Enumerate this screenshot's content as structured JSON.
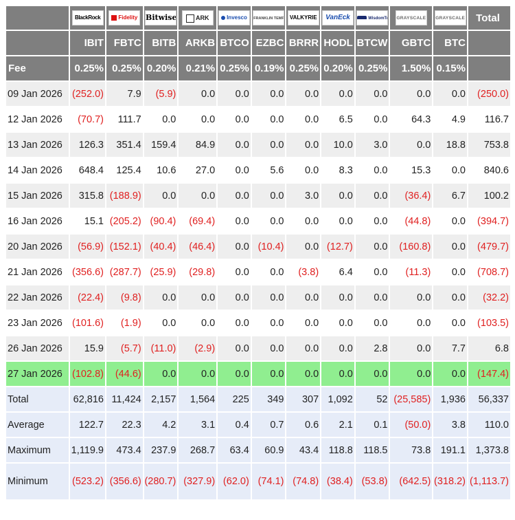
{
  "header": {
    "total_label": "Total",
    "fee_label": "Fee",
    "issuers": [
      {
        "ticker": "IBIT",
        "fee": "0.25%",
        "logo_text": "BlackRock",
        "logo_icon": "blackrock-logo"
      },
      {
        "ticker": "FBTC",
        "fee": "0.25%",
        "logo_text": "Fidelity",
        "logo_icon": "fidelity-logo"
      },
      {
        "ticker": "BITB",
        "fee": "0.20%",
        "logo_text": "Bitwise",
        "logo_icon": "bitwise-logo"
      },
      {
        "ticker": "ARKB",
        "fee": "0.21%",
        "logo_text": "ARK",
        "logo_icon": "ark-invest-logo"
      },
      {
        "ticker": "BTCO",
        "fee": "0.25%",
        "logo_text": "Invesco",
        "logo_icon": "invesco-logo"
      },
      {
        "ticker": "EZBC",
        "fee": "0.19%",
        "logo_text": "FRANKLIN TEMPLETON",
        "logo_icon": "franklin-templeton-logo"
      },
      {
        "ticker": "BRRR",
        "fee": "0.25%",
        "logo_text": "VALKYRIE",
        "logo_icon": "valkyrie-logo"
      },
      {
        "ticker": "HODL",
        "fee": "0.20%",
        "logo_text": "VanEck",
        "logo_icon": "vaneck-logo"
      },
      {
        "ticker": "BTCW",
        "fee": "0.25%",
        "logo_text": "WisdomTree",
        "logo_icon": "wisdomtree-logo"
      },
      {
        "ticker": "GBTC",
        "fee": "1.50%",
        "logo_text": "GRAYSCALE",
        "logo_icon": "grayscale-logo"
      },
      {
        "ticker": "BTC",
        "fee": "0.15%",
        "logo_text": "GRAYSCALE",
        "logo_icon": "grayscale-logo"
      }
    ]
  },
  "rows": [
    {
      "date": "09 Jan 2026",
      "values": [
        "(252.0)",
        "7.9",
        "(5.9)",
        "0.0",
        "0.0",
        "0.0",
        "0.0",
        "0.0",
        "0.0",
        "0.0",
        "0.0"
      ],
      "total": "(250.0)"
    },
    {
      "date": "12 Jan 2026",
      "values": [
        "(70.7)",
        "111.7",
        "0.0",
        "0.0",
        "0.0",
        "0.0",
        "0.0",
        "6.5",
        "0.0",
        "64.3",
        "4.9"
      ],
      "total": "116.7"
    },
    {
      "date": "13 Jan 2026",
      "values": [
        "126.3",
        "351.4",
        "159.4",
        "84.9",
        "0.0",
        "0.0",
        "0.0",
        "10.0",
        "3.0",
        "0.0",
        "18.8"
      ],
      "total": "753.8"
    },
    {
      "date": "14 Jan 2026",
      "values": [
        "648.4",
        "125.4",
        "10.6",
        "27.0",
        "0.0",
        "5.6",
        "0.0",
        "8.3",
        "0.0",
        "15.3",
        "0.0"
      ],
      "total": "840.6"
    },
    {
      "date": "15 Jan 2026",
      "values": [
        "315.8",
        "(188.9)",
        "0.0",
        "0.0",
        "0.0",
        "0.0",
        "3.0",
        "0.0",
        "0.0",
        "(36.4)",
        "6.7"
      ],
      "total": "100.2"
    },
    {
      "date": "16 Jan 2026",
      "values": [
        "15.1",
        "(205.2)",
        "(90.4)",
        "(69.4)",
        "0.0",
        "0.0",
        "0.0",
        "0.0",
        "0.0",
        "(44.8)",
        "0.0"
      ],
      "total": "(394.7)"
    },
    {
      "date": "20 Jan 2026",
      "values": [
        "(56.9)",
        "(152.1)",
        "(40.4)",
        "(46.4)",
        "0.0",
        "(10.4)",
        "0.0",
        "(12.7)",
        "0.0",
        "(160.8)",
        "0.0"
      ],
      "total": "(479.7)"
    },
    {
      "date": "21 Jan 2026",
      "values": [
        "(356.6)",
        "(287.7)",
        "(25.9)",
        "(29.8)",
        "0.0",
        "0.0",
        "(3.8)",
        "6.4",
        "0.0",
        "(11.3)",
        "0.0"
      ],
      "total": "(708.7)"
    },
    {
      "date": "22 Jan 2026",
      "values": [
        "(22.4)",
        "(9.8)",
        "0.0",
        "0.0",
        "0.0",
        "0.0",
        "0.0",
        "0.0",
        "0.0",
        "0.0",
        "0.0"
      ],
      "total": "(32.2)"
    },
    {
      "date": "23 Jan 2026",
      "values": [
        "(101.6)",
        "(1.9)",
        "0.0",
        "0.0",
        "0.0",
        "0.0",
        "0.0",
        "0.0",
        "0.0",
        "0.0",
        "0.0"
      ],
      "total": "(103.5)"
    },
    {
      "date": "26 Jan 2026",
      "values": [
        "15.9",
        "(5.7)",
        "(11.0)",
        "(2.9)",
        "0.0",
        "0.0",
        "0.0",
        "0.0",
        "2.8",
        "0.0",
        "7.7"
      ],
      "total": "6.8"
    },
    {
      "date": "27 Jan 2026",
      "values": [
        "(102.8)",
        "(44.6)",
        "0.0",
        "0.0",
        "0.0",
        "0.0",
        "0.0",
        "0.0",
        "0.0",
        "0.0",
        "0.0"
      ],
      "total": "(147.4)",
      "highlight": true
    }
  ],
  "summary": [
    {
      "label": "Total",
      "values": [
        "62,816",
        "11,424",
        "2,157",
        "1,564",
        "225",
        "349",
        "307",
        "1,092",
        "52",
        "(25,585)",
        "1,936"
      ],
      "total": "56,337"
    },
    {
      "label": "Average",
      "values": [
        "122.7",
        "22.3",
        "4.2",
        "3.1",
        "0.4",
        "0.7",
        "0.6",
        "2.1",
        "0.1",
        "(50.0)",
        "3.8"
      ],
      "total": "110.0"
    },
    {
      "label": "Maximum",
      "values": [
        "1,119.9",
        "473.4",
        "237.9",
        "268.7",
        "63.4",
        "60.9",
        "43.4",
        "118.8",
        "118.5",
        "73.8",
        "191.1"
      ],
      "total": "1,373.8"
    },
    {
      "label": "Minimum",
      "values": [
        "(523.2)",
        "(356.6)",
        "(280.7)",
        "(327.9)",
        "(62.0)",
        "(74.1)",
        "(74.8)",
        "(38.4)",
        "(53.8)",
        "(642.5)",
        "(318.2)"
      ],
      "total": "(1,113.7)"
    }
  ],
  "colors": {
    "header_bg": "#7f7f7f",
    "negative": "#e02020",
    "highlight": "#90ee90",
    "summary_bg": "#e6ecf8",
    "stripe": "#eeeeee"
  }
}
